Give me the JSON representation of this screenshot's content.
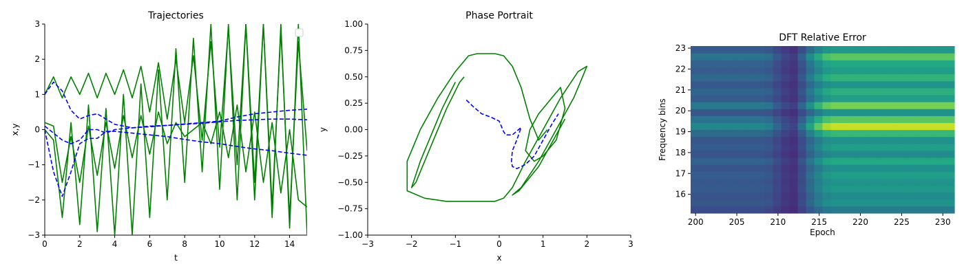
{
  "chart_data": [
    {
      "type": "line",
      "title": "Trajectories",
      "xlabel": "t",
      "ylabel": "x,y",
      "xlim": [
        0,
        15
      ],
      "ylim": [
        -3,
        3
      ],
      "xticks": [
        "0",
        "2",
        "4",
        "6",
        "8",
        "10",
        "12",
        "14"
      ],
      "yticks": [
        "−3",
        "−2",
        "−1",
        "0",
        "1",
        "2",
        "3"
      ],
      "legend": "top-right (empty)",
      "grid": false,
      "colors": {
        "series_green": "#008000",
        "series_blue": "#0000ff"
      },
      "series": [
        {
          "style": "solid",
          "color": "#008000",
          "x": [
            0,
            0.5,
            1,
            1.5,
            2,
            2.5,
            3,
            3.5,
            4,
            4.5,
            5,
            5.5,
            6,
            6.5,
            7,
            7.5,
            8,
            8.5,
            9,
            9.5,
            10,
            10.5,
            11,
            11.5,
            12,
            12.5,
            13,
            13.5,
            14,
            14.5,
            15
          ],
          "y": [
            1.0,
            1.5,
            0.9,
            1.5,
            1.0,
            1.6,
            0.9,
            1.6,
            1.0,
            1.7,
            0.9,
            1.8,
            0.5,
            1.9,
            0.3,
            2.0,
            0.2,
            2.1,
            -0.3,
            2.5,
            -0.5,
            2.9,
            -1.0,
            3.0,
            -1.5,
            3.0,
            -2.2,
            2.8,
            -2.5,
            2.5,
            -0.6
          ]
        },
        {
          "style": "solid",
          "color": "#008000",
          "x": [
            0,
            0.5,
            1,
            1.5,
            2,
            2.5,
            3,
            3.5,
            4,
            4.5,
            5,
            5.5,
            6,
            6.5,
            7,
            7.5,
            8,
            8.5,
            9,
            9.5,
            10,
            10.5,
            11,
            11.5,
            12,
            12.5,
            13,
            13.5,
            14,
            14.5,
            15
          ],
          "y": [
            0,
            -0.3,
            -2.5,
            0.2,
            -2.7,
            0.7,
            -2.9,
            0.6,
            -3.0,
            1.0,
            -3.0,
            1.3,
            -2.5,
            1.7,
            -2.0,
            2.3,
            -1.5,
            2.6,
            -1.2,
            3.0,
            -1.7,
            3.0,
            -2.0,
            3.0,
            -2.0,
            3.0,
            -2.5,
            3.0,
            -2.8,
            3.0,
            -3.0
          ]
        },
        {
          "style": "solid",
          "color": "#008000",
          "x": [
            0,
            0.5,
            1,
            1.5,
            2,
            2.5,
            3,
            3.5,
            4,
            4.5,
            5,
            5.5,
            6,
            6.5,
            7,
            7.5,
            8,
            8.5,
            9,
            9.5,
            10,
            10.5,
            11,
            11.5,
            12,
            12.5,
            13,
            13.5,
            14,
            14.5,
            15
          ],
          "y": [
            0.2,
            0.1,
            -1.5,
            -0.2,
            -1.5,
            0.1,
            -1.3,
            0.2,
            -1.1,
            0.4,
            -0.8,
            0.4,
            -0.7,
            0.5,
            -0.4,
            0.2,
            -0.2,
            0.0,
            0.2,
            -0.4,
            0.5,
            -0.8,
            0.7,
            -1.2,
            0.5,
            -1.5,
            0.2,
            -1.8,
            0.0,
            -2.0,
            -2.2
          ]
        },
        {
          "style": "dashed",
          "color": "#0000ff",
          "x": [
            0,
            0.5,
            1,
            1.5,
            2,
            2.5,
            3,
            3.5,
            4,
            5,
            6,
            7,
            8,
            9,
            10,
            11,
            12,
            13,
            14,
            15
          ],
          "y": [
            1.0,
            1.35,
            1.1,
            0.55,
            0.3,
            0.4,
            0.45,
            0.3,
            0.15,
            0.05,
            0.08,
            0.12,
            0.16,
            0.2,
            0.24,
            0.36,
            0.45,
            0.5,
            0.55,
            0.58
          ]
        },
        {
          "style": "dashed",
          "color": "#0000ff",
          "x": [
            0,
            0.5,
            1,
            1.5,
            2,
            2.5,
            3,
            3.5,
            4,
            5,
            6,
            7,
            8,
            9,
            10,
            11,
            12,
            13,
            14,
            15
          ],
          "y": [
            0,
            -1.2,
            -1.9,
            -1.2,
            -0.4,
            -0.25,
            -0.25,
            -0.05,
            -0.05,
            -0.1,
            -0.15,
            -0.2,
            -0.28,
            -0.35,
            -0.4,
            -0.48,
            -0.55,
            -0.6,
            -0.67,
            -0.73
          ]
        },
        {
          "style": "dashed",
          "color": "#0000ff",
          "x": [
            0,
            0.5,
            1,
            1.5,
            2,
            2.5,
            3,
            3.5,
            4,
            5,
            6,
            7,
            8,
            9,
            10,
            11,
            12,
            13,
            14,
            15
          ],
          "y": [
            0.1,
            -0.1,
            -0.3,
            -0.4,
            -0.3,
            0.0,
            0.0,
            -0.1,
            0.0,
            0.05,
            0.1,
            0.12,
            0.15,
            0.18,
            0.22,
            0.26,
            0.28,
            0.3,
            0.3,
            0.28
          ]
        }
      ]
    },
    {
      "type": "line",
      "title": "Phase Portrait",
      "xlabel": "x",
      "ylabel": "y",
      "xlim": [
        -3,
        3
      ],
      "ylim": [
        -1,
        1
      ],
      "xticks": [
        "−3",
        "−2",
        "−1",
        "0",
        "1",
        "2",
        "3"
      ],
      "yticks": [
        "−1.00",
        "−0.75",
        "−0.50",
        "−0.25",
        "0.00",
        "0.25",
        "0.50",
        "0.75",
        "1.00"
      ],
      "grid": false,
      "series": [
        {
          "style": "solid",
          "color": "#008000",
          "x": [
            1.5,
            0.9,
            0.45,
            0.3,
            0.5,
            0.9,
            1.3,
            1.7,
            1.9,
            2.0,
            1.8,
            1.4,
            1.0,
            0.6,
            0.3,
            0.1,
            -0.1,
            -0.3,
            -0.7,
            -1.2,
            -1.7,
            -2.1,
            -2.1,
            -1.8,
            -1.4,
            -1.0,
            -0.7,
            -0.5,
            -0.3,
            -0.1,
            0.1,
            0.3,
            0.5,
            0.7,
            0.9,
            1.1
          ],
          "y": [
            0.1,
            -0.35,
            -0.58,
            -0.62,
            -0.55,
            -0.3,
            0.0,
            0.3,
            0.5,
            0.6,
            0.55,
            0.3,
            0.0,
            -0.3,
            -0.55,
            -0.65,
            -0.68,
            -0.68,
            -0.68,
            -0.68,
            -0.65,
            -0.58,
            -0.3,
            0.0,
            0.3,
            0.55,
            0.7,
            0.72,
            0.72,
            0.72,
            0.7,
            0.6,
            0.4,
            0.1,
            -0.1,
            0.0
          ]
        },
        {
          "style": "solid",
          "color": "#008000",
          "x": [
            -1.0,
            -1.3,
            -1.8,
            -2.0,
            -1.9,
            -1.6,
            -1.2,
            -0.9,
            -0.8
          ],
          "y": [
            0.45,
            0.2,
            -0.3,
            -0.55,
            -0.5,
            -0.2,
            0.2,
            0.45,
            0.5
          ]
        },
        {
          "style": "solid",
          "color": "#008000",
          "x": [
            1.2,
            1.4,
            1.5,
            1.3,
            1.0,
            0.8,
            0.6,
            0.7,
            0.9,
            1.2
          ],
          "y": [
            0.3,
            0.4,
            0.2,
            -0.1,
            -0.25,
            -0.3,
            -0.2,
            0.0,
            0.15,
            0.3
          ]
        },
        {
          "style": "dashed",
          "color": "#0000ff",
          "x": [
            -0.75,
            -0.6,
            -0.4,
            -0.2,
            0.0,
            0.1,
            0.15,
            0.3,
            0.5,
            0.4,
            0.3,
            0.28,
            0.3,
            0.4,
            0.6,
            0.8,
            1.0,
            1.2,
            1.35
          ],
          "y": [
            0.28,
            0.22,
            0.15,
            0.12,
            0.08,
            -0.02,
            -0.05,
            -0.05,
            0.02,
            -0.1,
            -0.2,
            -0.3,
            -0.35,
            -0.37,
            -0.33,
            -0.25,
            -0.1,
            0.05,
            0.15
          ]
        }
      ]
    },
    {
      "type": "heatmap",
      "title": "DFT Relative Error",
      "xlabel": "Epoch",
      "ylabel": "Frequency bins",
      "xlim": [
        199.4,
        231.4
      ],
      "ylim": [
        15.1,
        23.1
      ],
      "xticks": [
        "200",
        "205",
        "210",
        "215",
        "220",
        "225",
        "230"
      ],
      "yticks": [
        "16",
        "17",
        "18",
        "19",
        "20",
        "21",
        "22",
        "23"
      ],
      "colormap": "viridis",
      "rows": 24,
      "cols": 32,
      "row_intensity": [
        0.35,
        0.45,
        0.42,
        0.48,
        0.46,
        0.5,
        0.44,
        0.55,
        0.42,
        0.5,
        0.45,
        0.62,
        0.88,
        0.7,
        0.45,
        0.75,
        0.5,
        0.58,
        0.46,
        0.6,
        0.5,
        0.55,
        0.7,
        0.48
      ],
      "col_factor": [
        0.45,
        0.45,
        0.45,
        0.45,
        0.45,
        0.45,
        0.45,
        0.45,
        0.45,
        0.42,
        0.3,
        0.2,
        0.15,
        0.35,
        0.6,
        0.8,
        0.95,
        1.0,
        1.0,
        1.0,
        1.0,
        1.0,
        1.0,
        1.0,
        1.0,
        1.0,
        1.0,
        1.0,
        1.0,
        1.0,
        1.0,
        1.0
      ]
    }
  ]
}
